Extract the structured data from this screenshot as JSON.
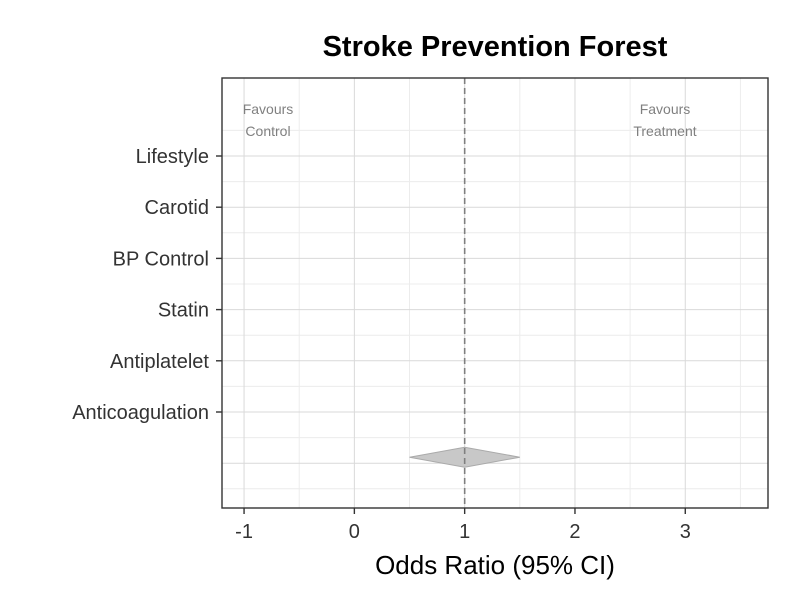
{
  "chart_data": {
    "type": "scatter",
    "title": "Stroke Prevention Forest",
    "xlabel": "Odds Ratio (95% CI)",
    "ylabel": "",
    "xlim": [
      -1.2,
      3.75
    ],
    "x_ticks": [
      "-1",
      "0",
      "1",
      "2",
      "3"
    ],
    "categories": [
      "Lifestyle",
      "Carotid",
      "BP Control",
      "Statin",
      "Antiplatelet",
      "Anticoagulation"
    ],
    "reference_line": 1,
    "summary": {
      "estimate": 1,
      "lower": 0.5,
      "upper": 1.5
    },
    "annotations": {
      "left": [
        "Favours",
        "Control"
      ],
      "right": [
        "Favours",
        "Treatment"
      ]
    },
    "grid": true,
    "legend": "none",
    "colors": {
      "panel_border": "#333333",
      "grid_major": "#d9d9d9",
      "grid_minor": "#ececec",
      "reference_line": "#7f7f7f",
      "summary_fill": "#c8c8c8",
      "summary_stroke": "#aaaaaa"
    }
  }
}
